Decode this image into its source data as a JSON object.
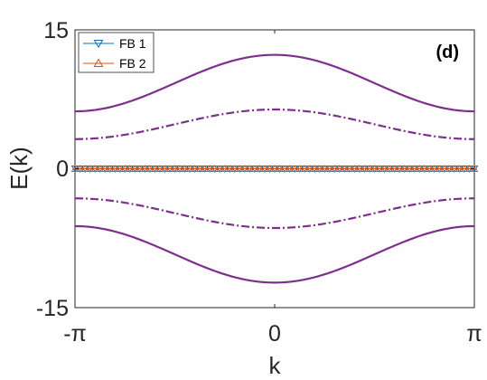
{
  "chart_data": {
    "type": "line",
    "panel_label": "(d)",
    "xlabel": "k",
    "ylabel": "E(k)",
    "xlim": [
      -3.14159,
      3.14159
    ],
    "ylim": [
      -15,
      15
    ],
    "x_tick_labels": [
      "-π",
      "0",
      "π"
    ],
    "y_tick_labels": [
      "-15",
      "0",
      "15"
    ],
    "grid": false,
    "legend_position": "top-left",
    "series": [
      {
        "name": "FB 1",
        "color": "#0072BD",
        "marker": "triangle-down",
        "style": "solid",
        "flat_value": 0
      },
      {
        "name": "FB 2",
        "color": "#D95319",
        "marker": "triangle-up",
        "style": "solid",
        "flat_value": 0
      },
      {
        "color": "#7E2F8E",
        "style": "solid",
        "x": [
          -3.14159,
          0,
          3.14159
        ],
        "y": [
          6.2,
          12.3,
          6.2
        ],
        "shape": "cosine"
      },
      {
        "color": "#7E2F8E",
        "style": "dashdot",
        "x": [
          -3.14159,
          0,
          3.14159
        ],
        "y": [
          3.2,
          6.4,
          3.2
        ],
        "shape": "cosine"
      },
      {
        "color": "#7E2F8E",
        "style": "dashdot",
        "x": [
          -3.14159,
          0,
          3.14159
        ],
        "y": [
          -3.2,
          -6.4,
          -3.2
        ],
        "shape": "cosine"
      },
      {
        "color": "#7E2F8E",
        "style": "solid",
        "x": [
          -3.14159,
          0,
          3.14159
        ],
        "y": [
          -6.2,
          -12.3,
          -6.2
        ],
        "shape": "cosine"
      }
    ]
  }
}
